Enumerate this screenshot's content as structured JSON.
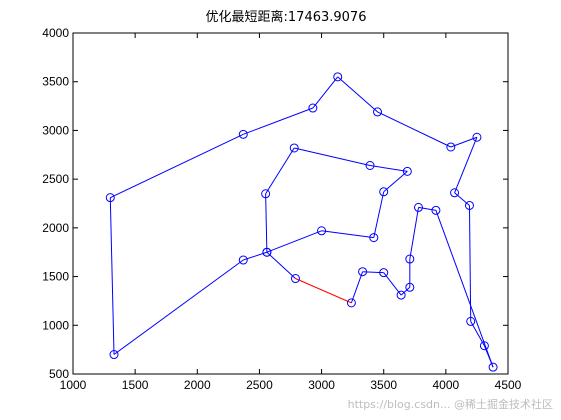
{
  "chart_data": {
    "type": "line",
    "title": "优化最短距离:17463.9076",
    "xlabel": "",
    "ylabel": "",
    "xlim": [
      1000,
      4500
    ],
    "ylim": [
      500,
      4000
    ],
    "x_ticks": [
      1000,
      1500,
      2000,
      2500,
      3000,
      3500,
      4000,
      4500
    ],
    "y_ticks": [
      500,
      1000,
      1500,
      2000,
      2500,
      3000,
      3500,
      4000
    ],
    "grid": false,
    "colors": {
      "route": "#0000ff",
      "closing": "#ff0000"
    },
    "series": [
      {
        "values_note": "",
        "points": [
          [
            2790,
            1480
          ],
          [
            2560,
            1750
          ],
          [
            2550,
            2350
          ],
          [
            2780,
            2820
          ],
          [
            3390,
            2640
          ],
          [
            3690,
            2580
          ],
          [
            3500,
            2370
          ],
          [
            3420,
            1900
          ],
          [
            3000,
            1970
          ],
          [
            2560,
            1750
          ],
          [
            2370,
            1670
          ],
          [
            1330,
            700
          ],
          [
            1300,
            2310
          ],
          [
            2370,
            2960
          ],
          [
            2930,
            3230
          ],
          [
            3130,
            3550
          ],
          [
            3450,
            3190
          ],
          [
            4040,
            2830
          ],
          [
            4250,
            2930
          ],
          [
            4070,
            2360
          ],
          [
            4190,
            2230
          ],
          [
            4200,
            1040
          ],
          [
            4310,
            790
          ],
          [
            4380,
            570
          ],
          [
            3920,
            2180
          ],
          [
            3780,
            2210
          ],
          [
            3710,
            1680
          ],
          [
            3710,
            1390
          ],
          [
            3640,
            1310
          ],
          [
            3500,
            1540
          ],
          [
            3330,
            1550
          ],
          [
            3240,
            1230
          ]
        ]
      }
    ]
  },
  "watermark": "https://blog.csdn... @稀土掘金技术社区"
}
